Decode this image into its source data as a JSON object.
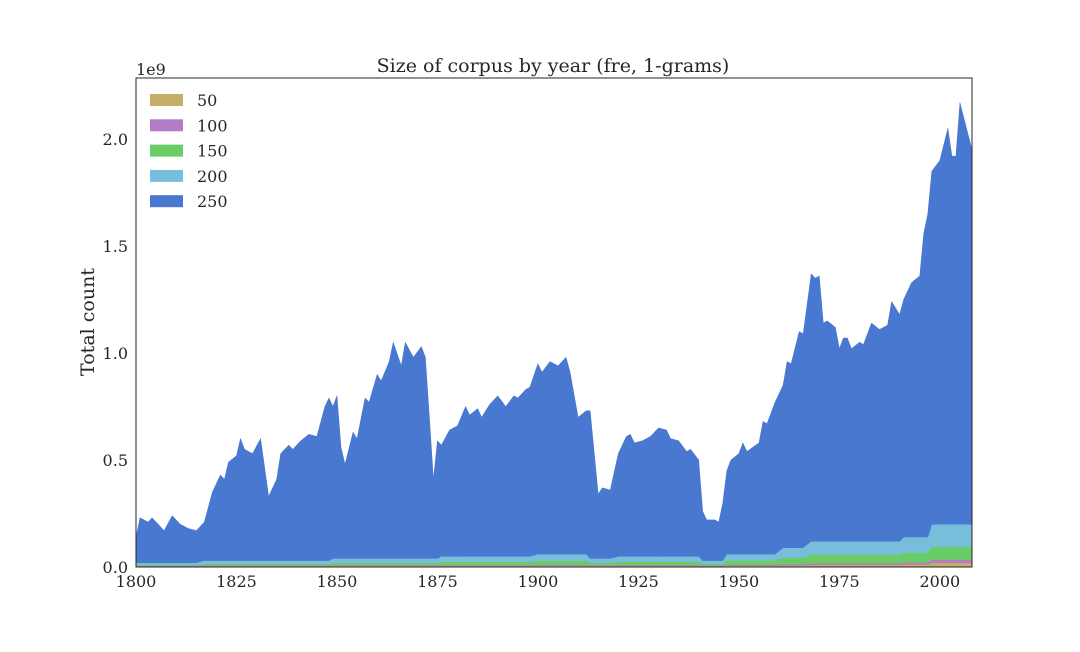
{
  "chart_data": {
    "type": "stacked_area",
    "title": "Size of corpus by year (fre, 1-grams)",
    "y_label": "Total count",
    "y_offset_label": "1e9",
    "legend": "upper left",
    "xlim": [
      1800,
      2008
    ],
    "ylim": [
      0,
      2.285
    ],
    "xticks": [
      1800,
      1825,
      1850,
      1875,
      1900,
      1925,
      1950,
      1975,
      2000
    ],
    "yticks": [
      {
        "value": 0,
        "label": "0.0"
      },
      0.5,
      {
        "value": 1,
        "label": "1.0"
      },
      1.5,
      {
        "value": 2,
        "label": "2.0"
      }
    ],
    "x": [
      1800,
      1801,
      1803,
      1804,
      1806,
      1807,
      1809,
      1811,
      1813,
      1815,
      1817,
      1819,
      1821,
      1822,
      1823,
      1825,
      1826,
      1827,
      1829,
      1831,
      1833,
      1835,
      1836,
      1838,
      1839,
      1841,
      1843,
      1845,
      1847,
      1848,
      1849,
      1850,
      1851,
      1852,
      1854,
      1855,
      1857,
      1858,
      1860,
      1861,
      1863,
      1864,
      1866,
      1867,
      1869,
      1871,
      1872,
      1873,
      1874,
      1875,
      1876,
      1878,
      1880,
      1882,
      1883,
      1885,
      1886,
      1888,
      1890,
      1892,
      1894,
      1895,
      1897,
      1898,
      1900,
      1901,
      1903,
      1905,
      1907,
      1908,
      1910,
      1912,
      1913,
      1915,
      1916,
      1918,
      1920,
      1922,
      1923,
      1924,
      1926,
      1928,
      1930,
      1932,
      1933,
      1935,
      1937,
      1938,
      1940,
      1941,
      1942,
      1944,
      1945,
      1946,
      1947,
      1948,
      1950,
      1951,
      1952,
      1955,
      1956,
      1957,
      1959,
      1961,
      1962,
      1963,
      1965,
      1966,
      1968,
      1969,
      1970,
      1971,
      1972,
      1974,
      1975,
      1976,
      1977,
      1978,
      1980,
      1981,
      1983,
      1985,
      1987,
      1988,
      1990,
      1991,
      1993,
      1995,
      1996,
      1997,
      1998,
      2000,
      2002,
      2003,
      2004,
      2005,
      2008
    ],
    "series": [
      {
        "name": "50",
        "color": "#c4ad66",
        "values": [
          0.004,
          0.004,
          0.004,
          0.004,
          0.004,
          0.004,
          0.004,
          0.004,
          0.004,
          0.004,
          0.005,
          0.005,
          0.005,
          0.005,
          0.005,
          0.005,
          0.005,
          0.005,
          0.005,
          0.005,
          0.005,
          0.005,
          0.005,
          0.005,
          0.005,
          0.005,
          0.005,
          0.005,
          0.005,
          0.005,
          0.005,
          0.005,
          0.005,
          0.005,
          0.005,
          0.005,
          0.005,
          0.005,
          0.005,
          0.005,
          0.005,
          0.005,
          0.005,
          0.005,
          0.005,
          0.005,
          0.005,
          0.005,
          0.005,
          0.005,
          0.005,
          0.005,
          0.005,
          0.005,
          0.005,
          0.005,
          0.005,
          0.005,
          0.005,
          0.005,
          0.005,
          0.005,
          0.005,
          0.005,
          0.006,
          0.006,
          0.006,
          0.006,
          0.006,
          0.006,
          0.006,
          0.006,
          0.005,
          0.005,
          0.005,
          0.005,
          0.006,
          0.006,
          0.006,
          0.006,
          0.006,
          0.006,
          0.006,
          0.006,
          0.006,
          0.006,
          0.006,
          0.006,
          0.006,
          0.004,
          0.004,
          0.004,
          0.004,
          0.004,
          0.006,
          0.006,
          0.006,
          0.006,
          0.006,
          0.006,
          0.006,
          0.006,
          0.006,
          0.008,
          0.008,
          0.008,
          0.008,
          0.008,
          0.01,
          0.01,
          0.01,
          0.01,
          0.01,
          0.01,
          0.01,
          0.01,
          0.01,
          0.01,
          0.01,
          0.01,
          0.01,
          0.01,
          0.01,
          0.01,
          0.01,
          0.012,
          0.012,
          0.012,
          0.012,
          0.012,
          0.02,
          0.02,
          0.02,
          0.02,
          0.02,
          0.02,
          0.02
        ]
      },
      {
        "name": "100",
        "color": "#b47cc7",
        "values": [
          0.002,
          0.002,
          0.002,
          0.002,
          0.002,
          0.002,
          0.002,
          0.002,
          0.002,
          0.002,
          0.003,
          0.003,
          0.003,
          0.003,
          0.003,
          0.003,
          0.003,
          0.003,
          0.003,
          0.003,
          0.003,
          0.003,
          0.003,
          0.003,
          0.003,
          0.003,
          0.003,
          0.003,
          0.003,
          0.003,
          0.003,
          0.003,
          0.003,
          0.003,
          0.003,
          0.003,
          0.003,
          0.003,
          0.003,
          0.003,
          0.003,
          0.003,
          0.003,
          0.003,
          0.003,
          0.003,
          0.003,
          0.003,
          0.003,
          0.003,
          0.004,
          0.004,
          0.004,
          0.004,
          0.004,
          0.004,
          0.004,
          0.004,
          0.004,
          0.004,
          0.004,
          0.004,
          0.004,
          0.004,
          0.004,
          0.004,
          0.004,
          0.004,
          0.004,
          0.004,
          0.004,
          0.004,
          0.003,
          0.003,
          0.003,
          0.003,
          0.004,
          0.004,
          0.004,
          0.004,
          0.004,
          0.004,
          0.004,
          0.004,
          0.004,
          0.004,
          0.004,
          0.004,
          0.004,
          0.003,
          0.003,
          0.003,
          0.003,
          0.003,
          0.005,
          0.005,
          0.005,
          0.005,
          0.005,
          0.005,
          0.005,
          0.005,
          0.005,
          0.006,
          0.006,
          0.006,
          0.006,
          0.006,
          0.008,
          0.008,
          0.008,
          0.008,
          0.008,
          0.008,
          0.008,
          0.008,
          0.008,
          0.008,
          0.008,
          0.008,
          0.008,
          0.008,
          0.008,
          0.008,
          0.008,
          0.01,
          0.01,
          0.01,
          0.01,
          0.01,
          0.015,
          0.015,
          0.015,
          0.015,
          0.015,
          0.015,
          0.015
        ]
      },
      {
        "name": "150",
        "color": "#6acc65",
        "values": [
          0.004,
          0.004,
          0.004,
          0.004,
          0.004,
          0.004,
          0.004,
          0.004,
          0.004,
          0.004,
          0.007,
          0.007,
          0.007,
          0.007,
          0.007,
          0.007,
          0.007,
          0.007,
          0.007,
          0.007,
          0.007,
          0.007,
          0.007,
          0.007,
          0.007,
          0.007,
          0.007,
          0.007,
          0.007,
          0.007,
          0.012,
          0.012,
          0.012,
          0.012,
          0.012,
          0.012,
          0.012,
          0.012,
          0.012,
          0.012,
          0.012,
          0.012,
          0.012,
          0.012,
          0.012,
          0.012,
          0.012,
          0.012,
          0.012,
          0.012,
          0.016,
          0.016,
          0.016,
          0.016,
          0.016,
          0.016,
          0.016,
          0.016,
          0.016,
          0.016,
          0.016,
          0.016,
          0.016,
          0.016,
          0.02,
          0.02,
          0.02,
          0.02,
          0.02,
          0.02,
          0.02,
          0.02,
          0.012,
          0.012,
          0.012,
          0.012,
          0.015,
          0.015,
          0.015,
          0.015,
          0.015,
          0.015,
          0.015,
          0.015,
          0.015,
          0.015,
          0.015,
          0.015,
          0.015,
          0.008,
          0.008,
          0.008,
          0.008,
          0.008,
          0.02,
          0.02,
          0.02,
          0.02,
          0.02,
          0.02,
          0.02,
          0.02,
          0.02,
          0.03,
          0.03,
          0.03,
          0.03,
          0.03,
          0.04,
          0.04,
          0.04,
          0.04,
          0.04,
          0.04,
          0.04,
          0.04,
          0.04,
          0.04,
          0.04,
          0.04,
          0.04,
          0.04,
          0.04,
          0.04,
          0.04,
          0.045,
          0.045,
          0.045,
          0.045,
          0.045,
          0.06,
          0.06,
          0.06,
          0.06,
          0.06,
          0.06,
          0.06
        ]
      },
      {
        "name": "200",
        "color": "#77bedb",
        "values": [
          0.01,
          0.01,
          0.01,
          0.01,
          0.01,
          0.01,
          0.01,
          0.01,
          0.01,
          0.01,
          0.015,
          0.015,
          0.015,
          0.015,
          0.015,
          0.015,
          0.015,
          0.015,
          0.015,
          0.015,
          0.015,
          0.015,
          0.015,
          0.015,
          0.015,
          0.015,
          0.015,
          0.015,
          0.015,
          0.015,
          0.02,
          0.02,
          0.02,
          0.02,
          0.02,
          0.02,
          0.02,
          0.02,
          0.02,
          0.02,
          0.02,
          0.02,
          0.02,
          0.02,
          0.02,
          0.02,
          0.02,
          0.02,
          0.02,
          0.02,
          0.025,
          0.025,
          0.025,
          0.025,
          0.025,
          0.025,
          0.025,
          0.025,
          0.025,
          0.025,
          0.025,
          0.025,
          0.025,
          0.025,
          0.03,
          0.03,
          0.03,
          0.03,
          0.03,
          0.03,
          0.03,
          0.03,
          0.02,
          0.02,
          0.02,
          0.02,
          0.025,
          0.025,
          0.025,
          0.025,
          0.025,
          0.025,
          0.025,
          0.025,
          0.025,
          0.025,
          0.025,
          0.025,
          0.025,
          0.015,
          0.015,
          0.015,
          0.015,
          0.015,
          0.029,
          0.029,
          0.029,
          0.029,
          0.029,
          0.029,
          0.029,
          0.029,
          0.029,
          0.046,
          0.046,
          0.046,
          0.046,
          0.046,
          0.062,
          0.062,
          0.062,
          0.062,
          0.062,
          0.062,
          0.062,
          0.062,
          0.062,
          0.062,
          0.062,
          0.062,
          0.062,
          0.062,
          0.062,
          0.062,
          0.062,
          0.073,
          0.073,
          0.073,
          0.073,
          0.073,
          0.105,
          0.105,
          0.105,
          0.105,
          0.105,
          0.105,
          0.105
        ]
      },
      {
        "name": "250",
        "color": "#4878cf",
        "values": [
          0.12,
          0.21,
          0.19,
          0.21,
          0.17,
          0.15,
          0.22,
          0.18,
          0.16,
          0.15,
          0.18,
          0.32,
          0.4,
          0.38,
          0.46,
          0.49,
          0.57,
          0.52,
          0.5,
          0.57,
          0.3,
          0.38,
          0.5,
          0.54,
          0.52,
          0.56,
          0.59,
          0.58,
          0.72,
          0.76,
          0.71,
          0.76,
          0.52,
          0.44,
          0.59,
          0.56,
          0.75,
          0.73,
          0.86,
          0.83,
          0.92,
          1.01,
          0.9,
          1.01,
          0.94,
          0.99,
          0.94,
          0.66,
          0.37,
          0.55,
          0.52,
          0.59,
          0.61,
          0.7,
          0.66,
          0.69,
          0.65,
          0.71,
          0.75,
          0.7,
          0.75,
          0.74,
          0.78,
          0.79,
          0.89,
          0.85,
          0.9,
          0.88,
          0.92,
          0.85,
          0.64,
          0.67,
          0.69,
          0.3,
          0.33,
          0.32,
          0.48,
          0.56,
          0.57,
          0.53,
          0.54,
          0.56,
          0.6,
          0.59,
          0.55,
          0.54,
          0.49,
          0.5,
          0.45,
          0.23,
          0.19,
          0.19,
          0.18,
          0.27,
          0.39,
          0.44,
          0.47,
          0.52,
          0.48,
          0.52,
          0.62,
          0.61,
          0.71,
          0.76,
          0.87,
          0.86,
          1.01,
          1.0,
          1.25,
          1.23,
          1.24,
          1.02,
          1.03,
          1.0,
          0.9,
          0.95,
          0.95,
          0.9,
          0.93,
          0.92,
          1.02,
          0.99,
          1.01,
          1.12,
          1.06,
          1.11,
          1.19,
          1.22,
          1.42,
          1.51,
          1.65,
          1.7,
          1.85,
          1.72,
          1.72,
          1.97,
          1.75
        ]
      }
    ]
  }
}
